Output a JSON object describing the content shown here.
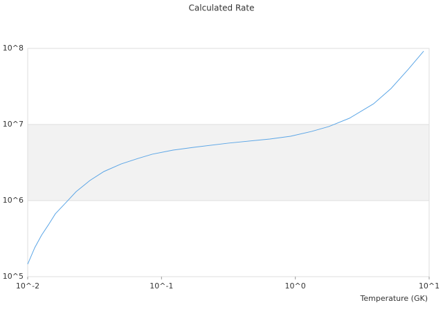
{
  "chart_data": {
    "type": "line",
    "title": "Calculated Rate",
    "x_label": "Temperature (GK)",
    "x": [
      0.01,
      0.0113,
      0.0127,
      0.0143,
      0.0161,
      0.0193,
      0.023,
      0.0292,
      0.0371,
      0.0499,
      0.0671,
      0.0853,
      0.122,
      0.174,
      0.316,
      0.645,
      0.92,
      1.32,
      1.78,
      2.54,
      3.84,
      5.19,
      7.0,
      9.1
    ],
    "series": [
      {
        "name": "Calculated Rate",
        "color": "#5aa5e6",
        "values": [
          146000,
          241000,
          351000,
          481000,
          671000,
          940000,
          1310000,
          1840000,
          2410000,
          3030000,
          3590000,
          4070000,
          4610000,
          5010000,
          5690000,
          6450000,
          7000000,
          8100000,
          9400000,
          12100000,
          18700000,
          29700000,
          53400000,
          92000000
        ]
      }
    ],
    "xscale": "log",
    "yscale": "log",
    "xlim": [
      0.01,
      10
    ],
    "ylim": [
      100000,
      100000000
    ],
    "xticks": [
      {
        "value": 0.01,
        "label": "10^-2"
      },
      {
        "value": 0.1,
        "label": "10^-1"
      },
      {
        "value": 1,
        "label": "10^0"
      },
      {
        "value": 10,
        "label": "10^1"
      }
    ],
    "yticks": [
      {
        "value": 100000,
        "label": "10^5"
      },
      {
        "value": 1000000,
        "label": "10^6"
      },
      {
        "value": 10000000,
        "label": "10^7"
      },
      {
        "value": 100000000,
        "label": "10^8"
      }
    ]
  }
}
